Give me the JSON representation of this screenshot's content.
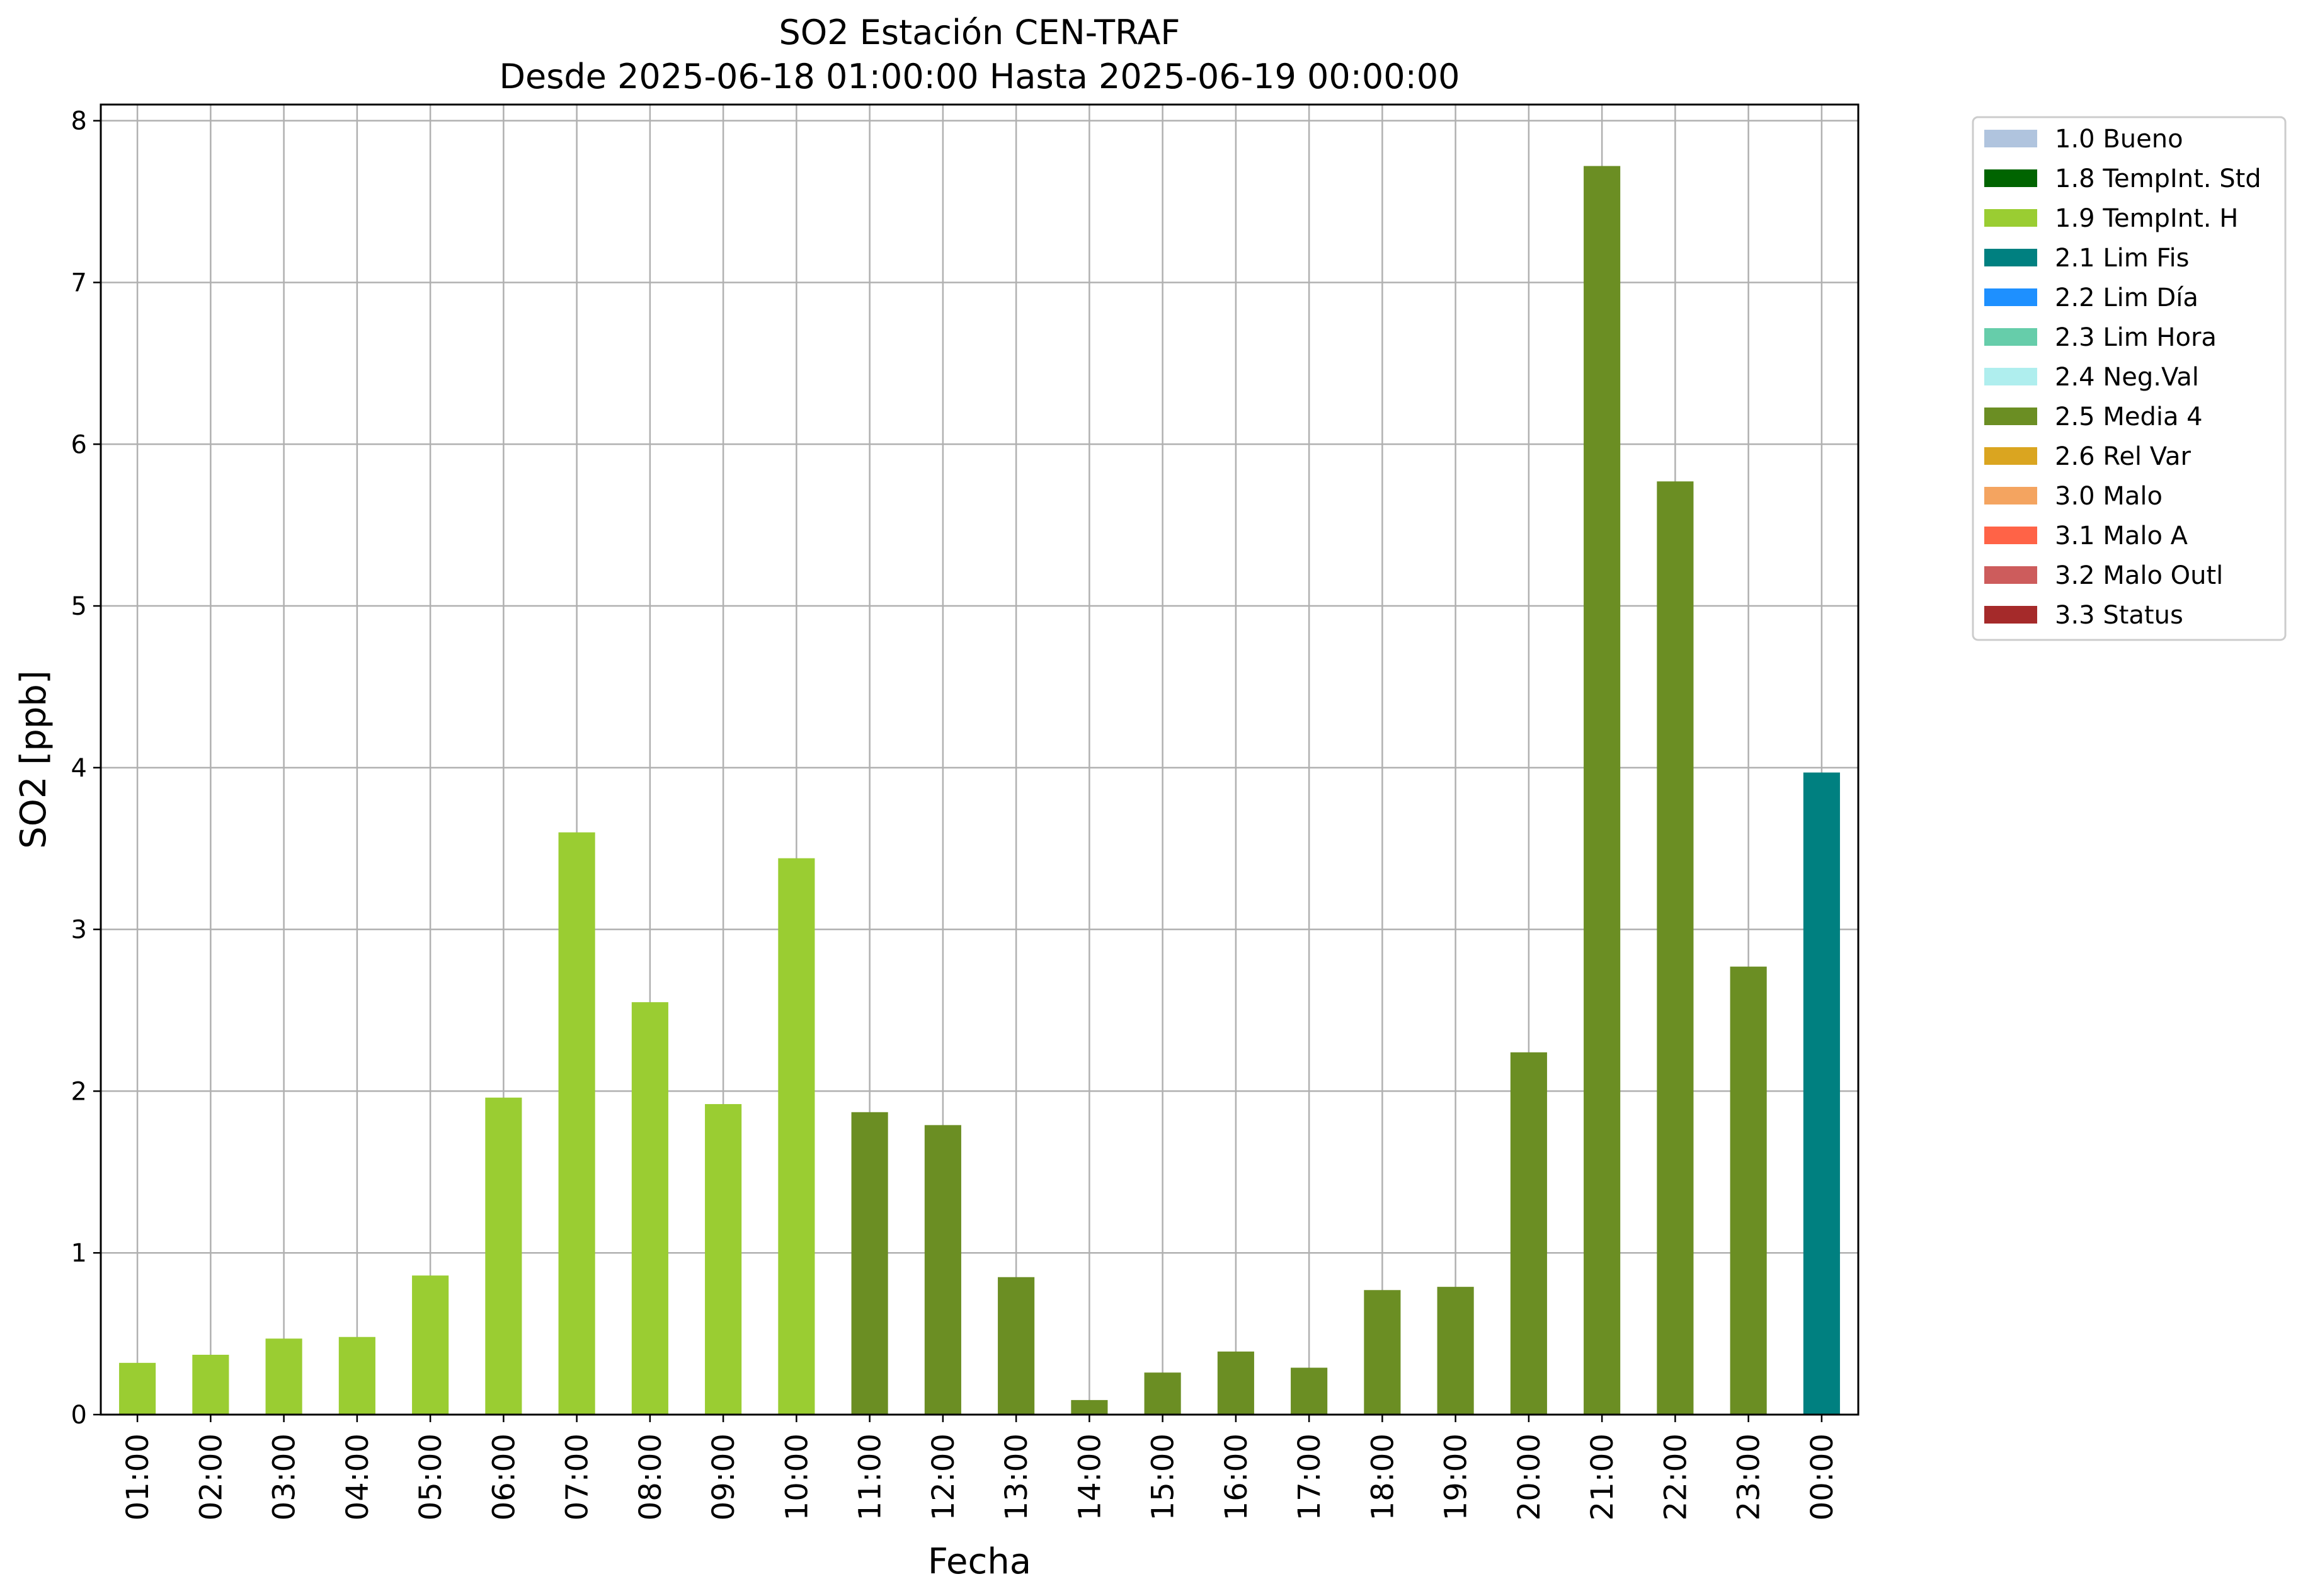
{
  "chart_data": {
    "type": "bar",
    "title": "SO2 Estación CEN-TRAF",
    "subtitle": "Desde 2025-06-18 01:00:00 Hasta 2025-06-19 00:00:00",
    "xlabel": "Fecha",
    "ylabel": "SO2 [ppb]",
    "ylim": [
      0,
      8.1
    ],
    "yticks": [
      0,
      1,
      2,
      3,
      4,
      5,
      6,
      7,
      8
    ],
    "grid": true,
    "legend_position": "outside-top-right",
    "categories": [
      "01:00",
      "02:00",
      "03:00",
      "04:00",
      "05:00",
      "06:00",
      "07:00",
      "08:00",
      "09:00",
      "10:00",
      "11:00",
      "12:00",
      "13:00",
      "14:00",
      "15:00",
      "16:00",
      "17:00",
      "18:00",
      "19:00",
      "20:00",
      "21:00",
      "22:00",
      "23:00",
      "00:00"
    ],
    "values": [
      0.32,
      0.37,
      0.47,
      0.48,
      0.86,
      1.96,
      3.6,
      2.55,
      1.92,
      3.44,
      1.87,
      1.79,
      0.85,
      0.09,
      0.26,
      0.39,
      0.29,
      0.77,
      0.79,
      2.24,
      7.72,
      5.77,
      2.77,
      3.97
    ],
    "flags": [
      "1.9 TempInt. H",
      "1.9 TempInt. H",
      "1.9 TempInt. H",
      "1.9 TempInt. H",
      "1.9 TempInt. H",
      "1.9 TempInt. H",
      "1.9 TempInt. H",
      "1.9 TempInt. H",
      "1.9 TempInt. H",
      "1.9 TempInt. H",
      "2.5 Media 4",
      "2.5 Media 4",
      "2.5 Media 4",
      "2.5 Media 4",
      "2.5 Media 4",
      "2.5 Media 4",
      "2.5 Media 4",
      "2.5 Media 4",
      "2.5 Media 4",
      "2.5 Media 4",
      "2.5 Media 4",
      "2.5 Media 4",
      "2.5 Media 4",
      "2.1 Lim Fis"
    ],
    "legend": [
      {
        "label": "1.0 Bueno",
        "color": "#b0c4de"
      },
      {
        "label": "1.8 TempInt. Std",
        "color": "#006400"
      },
      {
        "label": "1.9 TempInt. H",
        "color": "#9acd32"
      },
      {
        "label": "2.1 Lim Fis",
        "color": "#008080"
      },
      {
        "label": "2.2 Lim Día",
        "color": "#1e90ff"
      },
      {
        "label": "2.3 Lim Hora",
        "color": "#66cdaa"
      },
      {
        "label": "2.4 Neg.Val",
        "color": "#afeeee"
      },
      {
        "label": "2.5 Media 4",
        "color": "#6b8e23"
      },
      {
        "label": "2.6 Rel Var",
        "color": "#daa520"
      },
      {
        "label": "3.0 Malo",
        "color": "#f4a460"
      },
      {
        "label": "3.1 Malo A",
        "color": "#ff6347"
      },
      {
        "label": "3.2 Malo Outl",
        "color": "#cd5c5c"
      },
      {
        "label": "3.3 Status",
        "color": "#a52a2a"
      }
    ]
  }
}
